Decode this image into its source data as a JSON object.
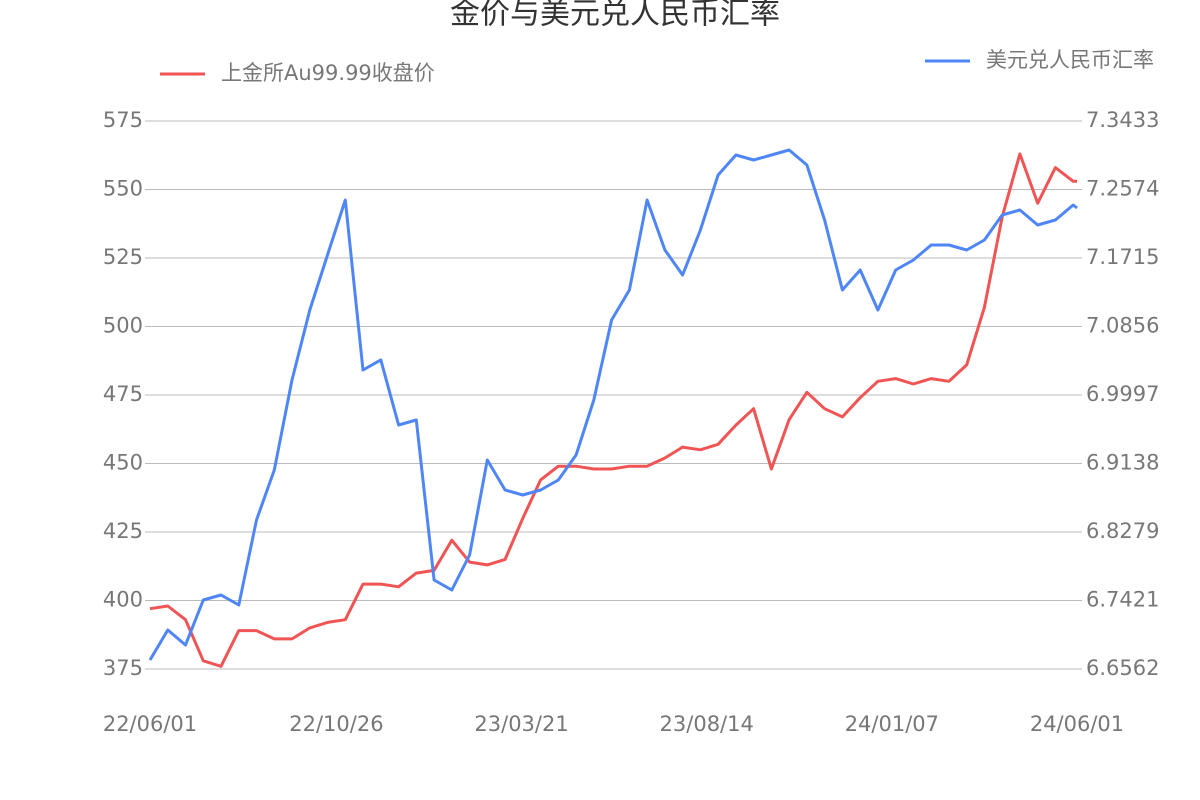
{
  "chart_data": {
    "type": "line",
    "title": "金价与美元兑人民币汇率",
    "x": [
      "22/06/01",
      "22/06/15",
      "22/06/29",
      "22/07/13",
      "22/07/27",
      "22/08/10",
      "22/08/24",
      "22/09/07",
      "22/09/21",
      "22/10/05",
      "22/10/19",
      "22/11/02",
      "22/11/16",
      "22/11/30",
      "22/12/14",
      "22/12/28",
      "23/01/11",
      "23/01/25",
      "23/02/08",
      "23/02/22",
      "23/03/08",
      "23/03/22",
      "23/04/05",
      "23/04/19",
      "23/05/03",
      "23/05/17",
      "23/05/31",
      "23/06/14",
      "23/06/28",
      "23/07/12",
      "23/07/26",
      "23/08/09",
      "23/08/23",
      "23/09/06",
      "23/09/20",
      "23/10/04",
      "23/10/18",
      "23/11/01",
      "23/11/15",
      "23/11/29",
      "23/12/13",
      "23/12/27",
      "24/01/10",
      "24/01/24",
      "24/02/07",
      "24/02/21",
      "24/03/06",
      "24/03/20",
      "24/04/03",
      "24/04/17",
      "24/05/01",
      "24/05/15",
      "24/05/29",
      "24/06/01"
    ],
    "series": [
      {
        "name": "上金所Au99.99收盘价",
        "color": "#f05454",
        "axis": "y",
        "values": [
          397,
          398,
          393,
          378,
          376,
          389,
          389,
          386,
          386,
          390,
          392,
          393,
          406,
          406,
          405,
          410,
          411,
          422,
          414,
          413,
          415,
          430,
          444,
          449,
          449,
          448,
          448,
          449,
          449,
          452,
          456,
          455,
          457,
          464,
          470,
          448,
          466,
          476,
          470,
          467,
          474,
          480,
          481,
          479,
          481,
          480,
          486,
          507,
          540,
          563,
          545,
          558,
          553,
          553
        ]
      },
      {
        "name": "美元兑人民币汇率",
        "color": "#4f86f7",
        "axis": "y2",
        "values": [
          6.6675,
          6.7051,
          6.6863,
          6.7427,
          6.749,
          6.7364,
          6.843,
          6.9057,
          7.0186,
          7.1063,
          7.1753,
          7.2442,
          7.0311,
          7.0437,
          6.9621,
          6.9684,
          6.7678,
          6.7553,
          6.7991,
          6.9183,
          6.8806,
          6.8744,
          6.8806,
          6.8932,
          6.9245,
          6.9935,
          7.0938,
          7.1314,
          7.2442,
          7.1816,
          7.1502,
          7.2066,
          7.2756,
          7.3007,
          7.2944,
          7.3007,
          7.307,
          7.2881,
          7.2192,
          7.1314,
          7.1565,
          7.1063,
          7.1565,
          7.169,
          7.1878,
          7.1878,
          7.1816,
          7.1941,
          7.2255,
          7.2317,
          7.2129,
          7.2192,
          7.238,
          7.2342
        ]
      }
    ],
    "xlim": [
      "22/06/01",
      "24/06/01"
    ],
    "xticks": [
      "22/06/01",
      "22/10/26",
      "23/03/21",
      "23/08/14",
      "24/01/07",
      "24/06/01"
    ],
    "ylim": [
      375,
      575
    ],
    "yticks": [
      375,
      400,
      425,
      450,
      475,
      500,
      525,
      550,
      575
    ],
    "y2lim": [
      6.6562,
      7.3433
    ],
    "y2ticks": [
      6.6562,
      6.7421,
      6.8279,
      6.9138,
      6.9997,
      7.0856,
      7.1715,
      7.2574,
      7.3433
    ],
    "grid": true
  }
}
